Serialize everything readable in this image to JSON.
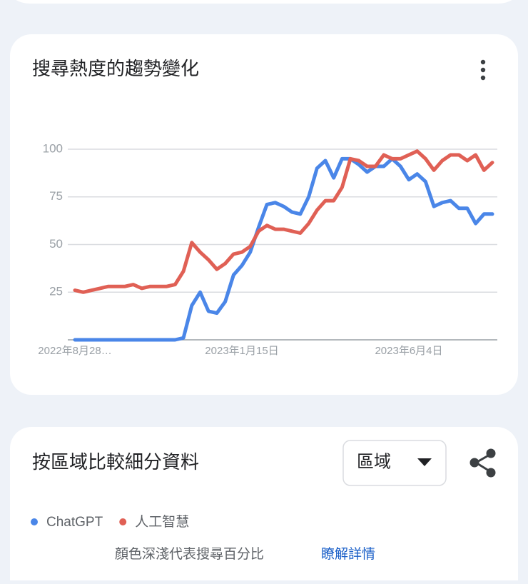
{
  "chart_data": {
    "type": "line",
    "title": "搜尋熱度的趨勢變化",
    "categories": [
      "2022年8月28…",
      null,
      null,
      null,
      null,
      null,
      null,
      null,
      null,
      null,
      null,
      null,
      null,
      null,
      null,
      null,
      null,
      null,
      null,
      null,
      "2023年1月15日",
      null,
      null,
      null,
      null,
      null,
      null,
      null,
      null,
      null,
      null,
      null,
      null,
      null,
      null,
      null,
      null,
      null,
      null,
      null,
      "2023年6月4日",
      null,
      null,
      null,
      null,
      null,
      null,
      null,
      null,
      null,
      null
    ],
    "series": [
      {
        "name": "ChatGPT",
        "color": "#4a86e8",
        "values": [
          0,
          0,
          0,
          0,
          0,
          0,
          0,
          0,
          0,
          0,
          0,
          0,
          0,
          1,
          18,
          25,
          15,
          14,
          20,
          34,
          39,
          46,
          59,
          71,
          72,
          70,
          67,
          66,
          75,
          90,
          94,
          85,
          95,
          95,
          92,
          88,
          91,
          91,
          95,
          91,
          84,
          87,
          83,
          70,
          72,
          73,
          69,
          69,
          61,
          66,
          66
        ]
      },
      {
        "name": "人工智慧",
        "color": "#e06055",
        "values": [
          26,
          25,
          26,
          27,
          28,
          28,
          28,
          29,
          27,
          28,
          28,
          28,
          29,
          36,
          51,
          46,
          42,
          37,
          40,
          45,
          46,
          49,
          57,
          60,
          58,
          58,
          57,
          56,
          61,
          68,
          73,
          73,
          80,
          95,
          94,
          91,
          91,
          97,
          95,
          95,
          97,
          99,
          95,
          89,
          94,
          97,
          97,
          94,
          97,
          89,
          93
        ]
      }
    ],
    "ylim": [
      0,
      100
    ],
    "yticks": [
      25,
      50,
      75,
      100
    ],
    "grid": true
  },
  "breakdown": {
    "title": "按區域比較細分資料",
    "dropdown": "區域",
    "note": "顏色深淺代表搜尋百分比",
    "link": "瞭解詳情"
  }
}
